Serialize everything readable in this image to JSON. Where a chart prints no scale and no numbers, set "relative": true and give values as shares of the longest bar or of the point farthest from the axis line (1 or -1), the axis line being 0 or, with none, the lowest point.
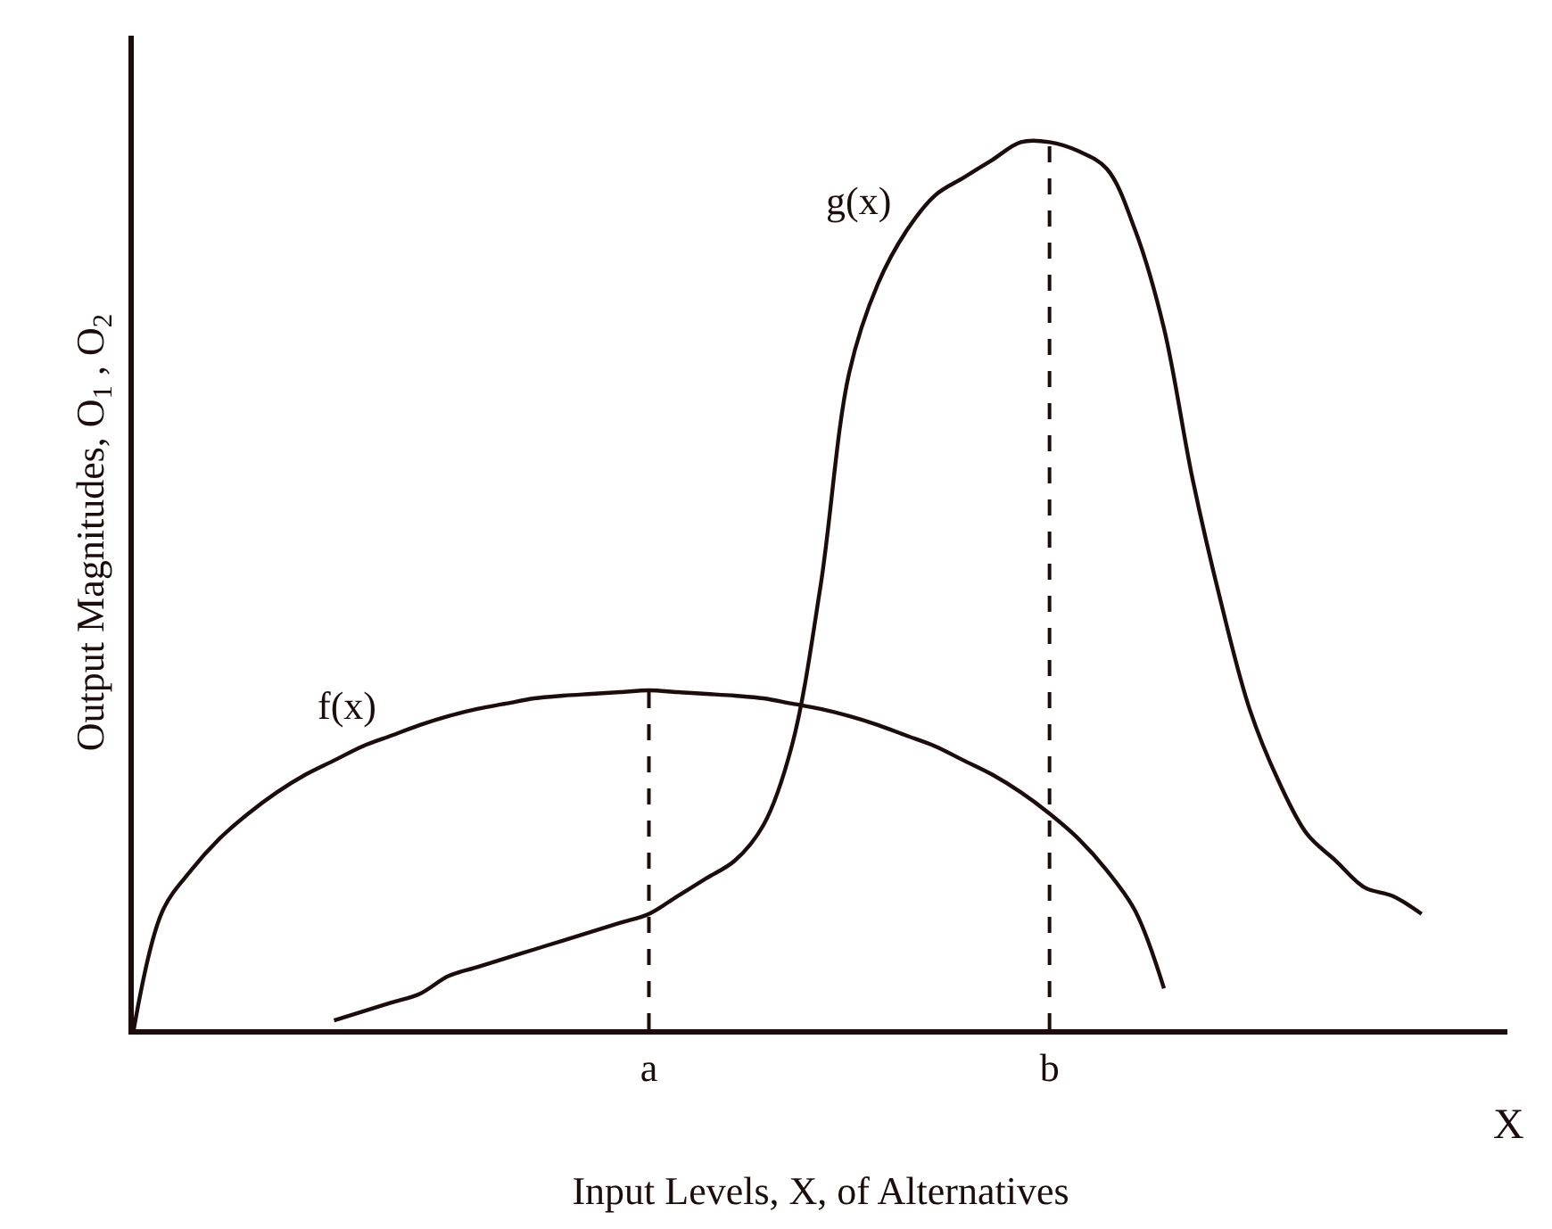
{
  "chart_data": {
    "type": "line",
    "relative": true,
    "xlabel": "Input Levels, X, of Alternatives",
    "ylabel": "Output Magnitudes, O$_{1}$ , O$_{2}$",
    "categories": [
      null,
      null,
      null,
      null,
      null,
      null,
      null,
      null,
      null,
      null,
      null,
      null,
      null,
      null,
      null,
      null,
      null,
      null,
      "a",
      null,
      null,
      null,
      null,
      null,
      null,
      null,
      null,
      null,
      null,
      null,
      null,
      null,
      "b",
      null,
      null,
      null,
      null,
      null,
      null,
      null,
      null,
      null,
      null,
      null,
      null,
      null,
      null,
      null
    ],
    "series": [
      {
        "name": "f(x)",
        "color": "#1c0d0c",
        "values": [
          0,
          0.133,
          0.179,
          0.215,
          0.243,
          0.267,
          0.287,
          0.303,
          0.319,
          0.331,
          0.343,
          0.353,
          0.361,
          0.367,
          0.373,
          0.376,
          0.378,
          0.38,
          0.382,
          0.38,
          0.378,
          0.376,
          0.373,
          0.367,
          0.361,
          0.353,
          0.343,
          0.331,
          0.319,
          0.303,
          0.287,
          0.267,
          0.243,
          0.215,
          0.179,
          0.133,
          0.046,
          null,
          null,
          null,
          null,
          null,
          null,
          null,
          null,
          null,
          null,
          null
        ]
      },
      {
        "name": "g(x)",
        "color": "#1c0d0c",
        "values": [
          null,
          null,
          null,
          null,
          null,
          null,
          null,
          0.01,
          0.02,
          0.03,
          0.04,
          0.06,
          0.07,
          0.08,
          0.09,
          0.1,
          0.11,
          0.12,
          0.13,
          0.15,
          0.17,
          0.19,
          0.23,
          0.32,
          0.5,
          0.74,
          0.84,
          0.9,
          0.94,
          0.96,
          0.98,
          1.0,
          1.0,
          0.99,
          0.97,
          0.9,
          0.79,
          0.62,
          0.48,
          0.36,
          0.28,
          0.22,
          0.19,
          0.16,
          0.15,
          0.13,
          null,
          null
        ]
      }
    ],
    "ref_lines": [
      {
        "axis": "x",
        "value": "a",
        "line_style": "dashed"
      },
      {
        "axis": "x",
        "value": "b",
        "line_style": "dashed"
      }
    ],
    "annotations": [
      "X"
    ],
    "legend": false,
    "marker": "none",
    "line_style": "solid",
    "tick_labels": "x"
  }
}
